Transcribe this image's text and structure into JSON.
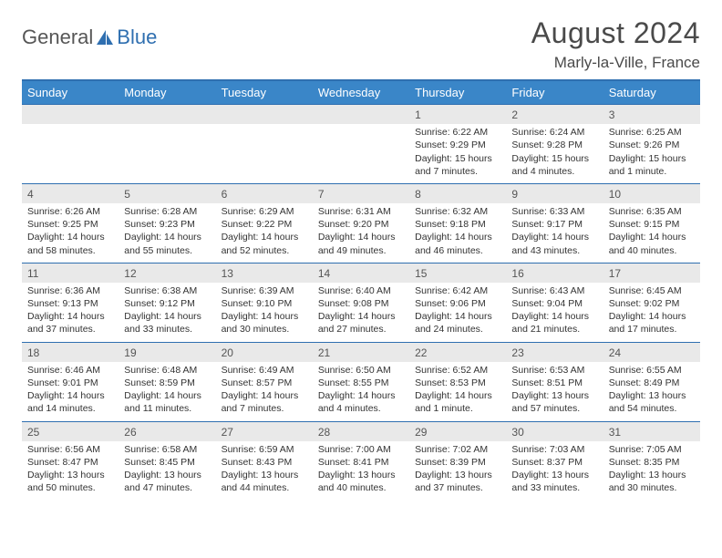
{
  "brand": {
    "part1": "General",
    "part2": "Blue"
  },
  "title": "August 2024",
  "location": "Marly-la-Ville, France",
  "colors": {
    "header_bg": "#3a86c8",
    "header_text": "#ffffff",
    "accent_border": "#2f6fb0",
    "daynum_bg": "#e9e9e9",
    "text": "#333333",
    "page_bg": "#ffffff"
  },
  "day_headers": [
    "Sunday",
    "Monday",
    "Tuesday",
    "Wednesday",
    "Thursday",
    "Friday",
    "Saturday"
  ],
  "weeks": [
    [
      null,
      null,
      null,
      null,
      {
        "n": "1",
        "sr": "6:22 AM",
        "ss": "9:29 PM",
        "dl": "15 hours and 7 minutes."
      },
      {
        "n": "2",
        "sr": "6:24 AM",
        "ss": "9:28 PM",
        "dl": "15 hours and 4 minutes."
      },
      {
        "n": "3",
        "sr": "6:25 AM",
        "ss": "9:26 PM",
        "dl": "15 hours and 1 minute."
      }
    ],
    [
      {
        "n": "4",
        "sr": "6:26 AM",
        "ss": "9:25 PM",
        "dl": "14 hours and 58 minutes."
      },
      {
        "n": "5",
        "sr": "6:28 AM",
        "ss": "9:23 PM",
        "dl": "14 hours and 55 minutes."
      },
      {
        "n": "6",
        "sr": "6:29 AM",
        "ss": "9:22 PM",
        "dl": "14 hours and 52 minutes."
      },
      {
        "n": "7",
        "sr": "6:31 AM",
        "ss": "9:20 PM",
        "dl": "14 hours and 49 minutes."
      },
      {
        "n": "8",
        "sr": "6:32 AM",
        "ss": "9:18 PM",
        "dl": "14 hours and 46 minutes."
      },
      {
        "n": "9",
        "sr": "6:33 AM",
        "ss": "9:17 PM",
        "dl": "14 hours and 43 minutes."
      },
      {
        "n": "10",
        "sr": "6:35 AM",
        "ss": "9:15 PM",
        "dl": "14 hours and 40 minutes."
      }
    ],
    [
      {
        "n": "11",
        "sr": "6:36 AM",
        "ss": "9:13 PM",
        "dl": "14 hours and 37 minutes."
      },
      {
        "n": "12",
        "sr": "6:38 AM",
        "ss": "9:12 PM",
        "dl": "14 hours and 33 minutes."
      },
      {
        "n": "13",
        "sr": "6:39 AM",
        "ss": "9:10 PM",
        "dl": "14 hours and 30 minutes."
      },
      {
        "n": "14",
        "sr": "6:40 AM",
        "ss": "9:08 PM",
        "dl": "14 hours and 27 minutes."
      },
      {
        "n": "15",
        "sr": "6:42 AM",
        "ss": "9:06 PM",
        "dl": "14 hours and 24 minutes."
      },
      {
        "n": "16",
        "sr": "6:43 AM",
        "ss": "9:04 PM",
        "dl": "14 hours and 21 minutes."
      },
      {
        "n": "17",
        "sr": "6:45 AM",
        "ss": "9:02 PM",
        "dl": "14 hours and 17 minutes."
      }
    ],
    [
      {
        "n": "18",
        "sr": "6:46 AM",
        "ss": "9:01 PM",
        "dl": "14 hours and 14 minutes."
      },
      {
        "n": "19",
        "sr": "6:48 AM",
        "ss": "8:59 PM",
        "dl": "14 hours and 11 minutes."
      },
      {
        "n": "20",
        "sr": "6:49 AM",
        "ss": "8:57 PM",
        "dl": "14 hours and 7 minutes."
      },
      {
        "n": "21",
        "sr": "6:50 AM",
        "ss": "8:55 PM",
        "dl": "14 hours and 4 minutes."
      },
      {
        "n": "22",
        "sr": "6:52 AM",
        "ss": "8:53 PM",
        "dl": "14 hours and 1 minute."
      },
      {
        "n": "23",
        "sr": "6:53 AM",
        "ss": "8:51 PM",
        "dl": "13 hours and 57 minutes."
      },
      {
        "n": "24",
        "sr": "6:55 AM",
        "ss": "8:49 PM",
        "dl": "13 hours and 54 minutes."
      }
    ],
    [
      {
        "n": "25",
        "sr": "6:56 AM",
        "ss": "8:47 PM",
        "dl": "13 hours and 50 minutes."
      },
      {
        "n": "26",
        "sr": "6:58 AM",
        "ss": "8:45 PM",
        "dl": "13 hours and 47 minutes."
      },
      {
        "n": "27",
        "sr": "6:59 AM",
        "ss": "8:43 PM",
        "dl": "13 hours and 44 minutes."
      },
      {
        "n": "28",
        "sr": "7:00 AM",
        "ss": "8:41 PM",
        "dl": "13 hours and 40 minutes."
      },
      {
        "n": "29",
        "sr": "7:02 AM",
        "ss": "8:39 PM",
        "dl": "13 hours and 37 minutes."
      },
      {
        "n": "30",
        "sr": "7:03 AM",
        "ss": "8:37 PM",
        "dl": "13 hours and 33 minutes."
      },
      {
        "n": "31",
        "sr": "7:05 AM",
        "ss": "8:35 PM",
        "dl": "13 hours and 30 minutes."
      }
    ]
  ],
  "labels": {
    "sunrise": "Sunrise:",
    "sunset": "Sunset:",
    "daylight": "Daylight:"
  }
}
